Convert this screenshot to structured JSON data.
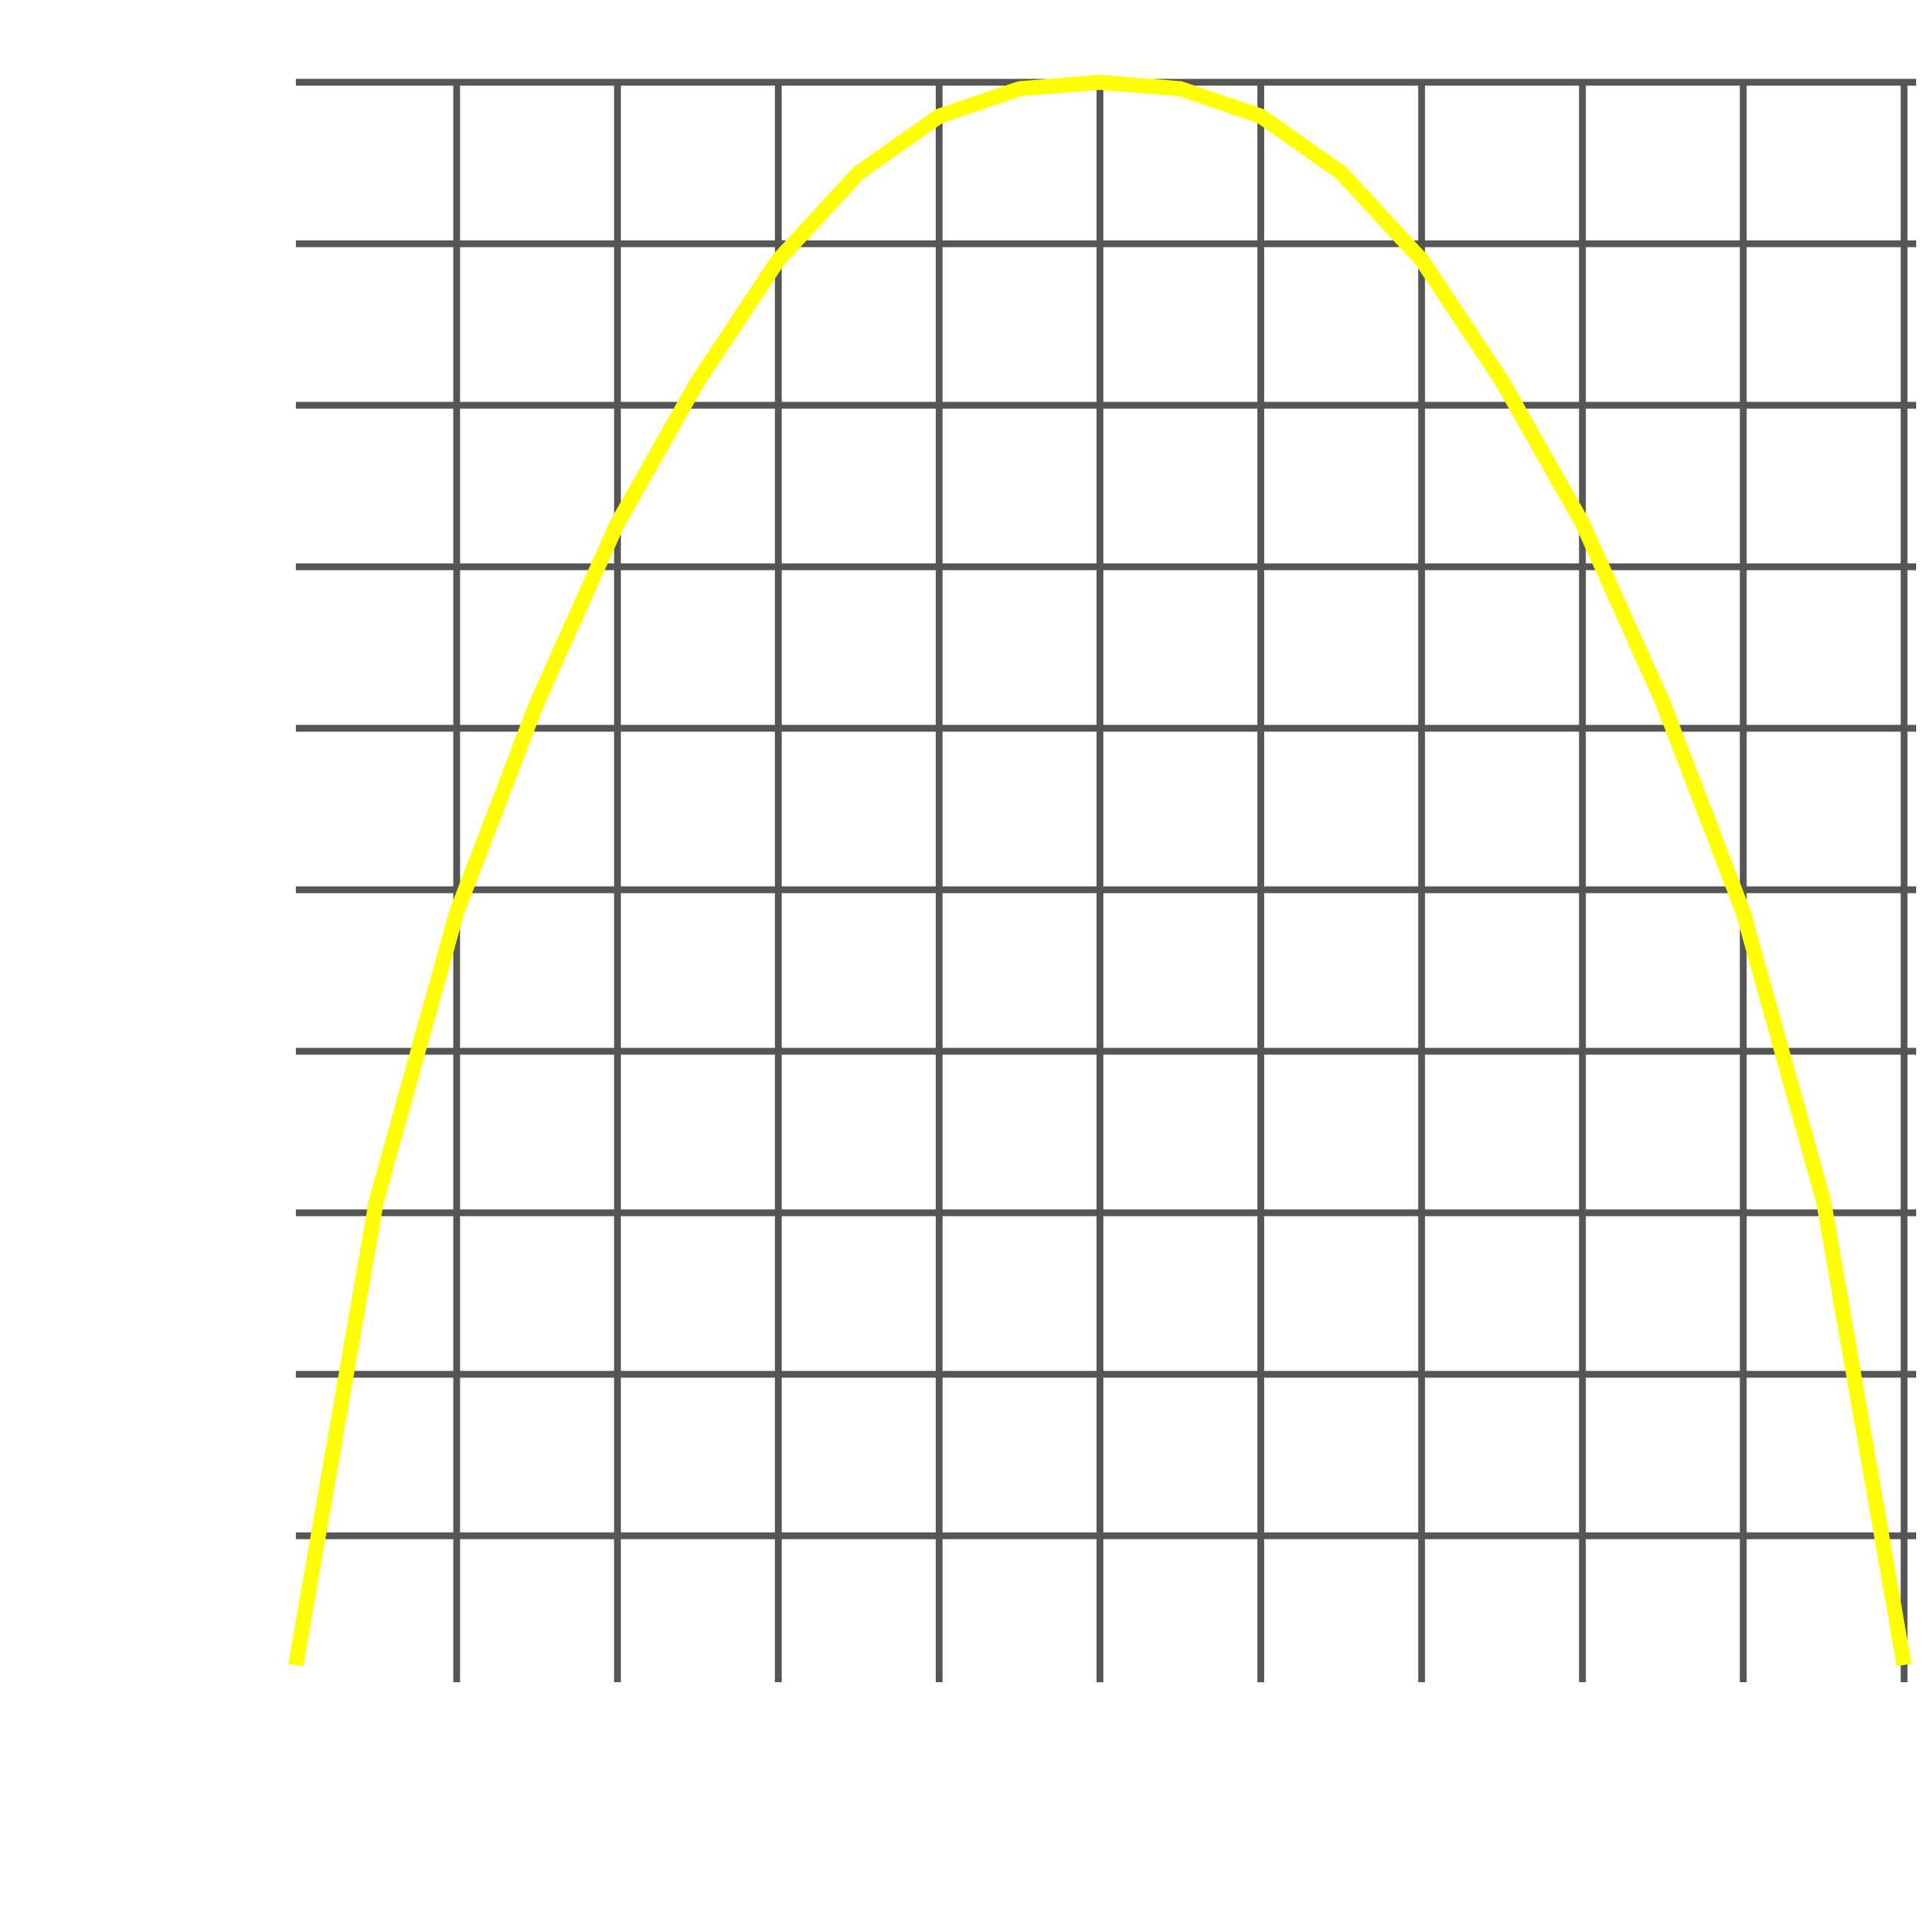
{
  "chart_data": {
    "type": "line",
    "x": [
      0,
      0.5,
      1,
      1.5,
      2,
      2.5,
      3,
      3.5,
      4,
      4.5,
      5,
      5.5,
      6,
      6.5,
      7,
      7.5,
      8,
      8.5,
      9,
      9.5,
      10
    ],
    "series": [
      {
        "color": "#ffff00",
        "values": [
          0.2,
          3.07,
          4.86,
          6.16,
          7.27,
          8.15,
          8.9,
          9.44,
          9.79,
          9.96,
          10,
          9.96,
          9.79,
          9.44,
          8.9,
          8.15,
          7.27,
          6.16,
          4.86,
          3.07,
          0.2
        ]
      }
    ],
    "xlim": [
      0,
      10
    ],
    "ylim": [
      0,
      10
    ],
    "xticks": [
      1,
      2,
      3,
      4,
      5,
      6,
      7,
      8,
      9,
      10
    ],
    "yticks": [
      1,
      2,
      3,
      4,
      5,
      6,
      7,
      8,
      9,
      10
    ],
    "grid": true,
    "grid_color": "#555555"
  }
}
